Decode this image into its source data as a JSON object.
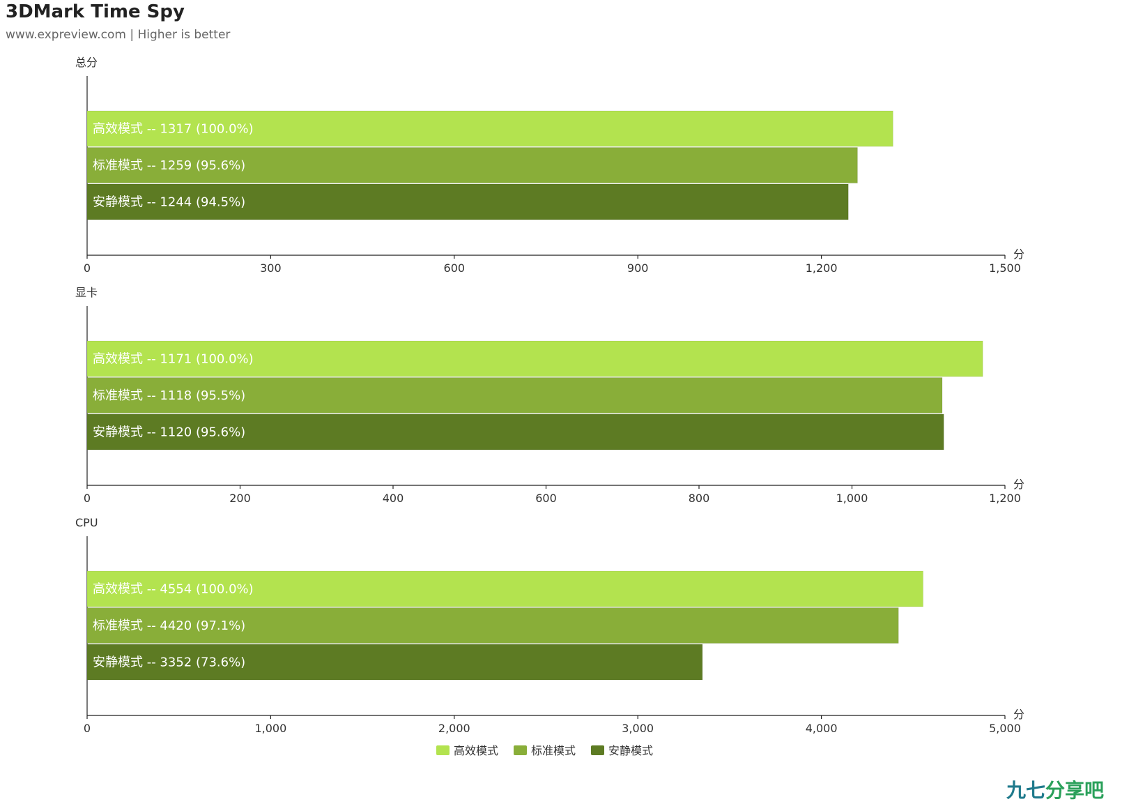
{
  "header": {
    "title": "3DMark Time Spy",
    "subtitle": "www.expreview.com | Higher is better"
  },
  "colors": {
    "高效模式": "#b3e34f",
    "标准模式": "#89ae39",
    "安静模式": "#5d7b23",
    "axis": "#222222",
    "label": "#ffffff"
  },
  "chart_data": [
    {
      "type": "bar",
      "orientation": "horizontal",
      "title": "总分",
      "unit": "分",
      "xlim": [
        0,
        1500
      ],
      "ticks": [
        "0",
        "300",
        "600",
        "900",
        "1,200",
        "1,500"
      ],
      "tick_values": [
        0,
        300,
        600,
        900,
        1200,
        1500
      ],
      "bars": [
        {
          "name": "高效模式",
          "value": 1317,
          "pct": "100.0%",
          "label": "高效模式 -- 1317 (100.0%)"
        },
        {
          "name": "标准模式",
          "value": 1259,
          "pct": "95.6%",
          "label": "标准模式 -- 1259 (95.6%)"
        },
        {
          "name": "安静模式",
          "value": 1244,
          "pct": "94.5%",
          "label": "安静模式 -- 1244 (94.5%)"
        }
      ]
    },
    {
      "type": "bar",
      "orientation": "horizontal",
      "title": "显卡",
      "unit": "分",
      "xlim": [
        0,
        1200
      ],
      "ticks": [
        "0",
        "200",
        "400",
        "600",
        "800",
        "1,000",
        "1,200"
      ],
      "tick_values": [
        0,
        200,
        400,
        600,
        800,
        1000,
        1200
      ],
      "bars": [
        {
          "name": "高效模式",
          "value": 1171,
          "pct": "100.0%",
          "label": "高效模式 -- 1171 (100.0%)"
        },
        {
          "name": "标准模式",
          "value": 1118,
          "pct": "95.5%",
          "label": "标准模式 -- 1118 (95.5%)"
        },
        {
          "name": "安静模式",
          "value": 1120,
          "pct": "95.6%",
          "label": "安静模式 -- 1120 (95.6%)"
        }
      ]
    },
    {
      "type": "bar",
      "orientation": "horizontal",
      "title": "CPU",
      "unit": "分",
      "xlim": [
        0,
        5000
      ],
      "ticks": [
        "0",
        "1,000",
        "2,000",
        "3,000",
        "4,000",
        "5,000"
      ],
      "tick_values": [
        0,
        1000,
        2000,
        3000,
        4000,
        5000
      ],
      "bars": [
        {
          "name": "高效模式",
          "value": 4554,
          "pct": "100.0%",
          "label": "高效模式 -- 4554 (100.0%)"
        },
        {
          "name": "标准模式",
          "value": 4420,
          "pct": "97.1%",
          "label": "标准模式 -- 4420 (97.1%)"
        },
        {
          "name": "安静模式",
          "value": 3352,
          "pct": "73.6%",
          "label": "安静模式 -- 3352 (73.6%)"
        }
      ]
    }
  ],
  "legend": {
    "placement": "bottom-center",
    "items": [
      "高效模式",
      "标准模式",
      "安静模式"
    ]
  },
  "watermark": {
    "part1": "九七",
    "part2": "分享吧"
  }
}
